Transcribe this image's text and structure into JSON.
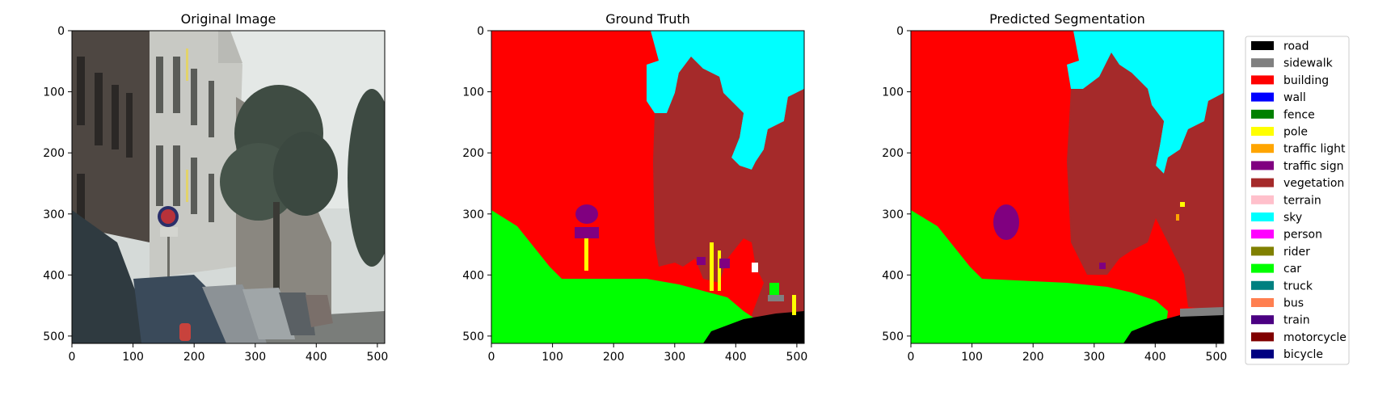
{
  "panels": [
    {
      "title": "Original Image",
      "kind": "photo",
      "xticks": [
        0,
        100,
        200,
        300,
        400,
        500
      ],
      "yticks": [
        0,
        100,
        200,
        300,
        400,
        500
      ],
      "xlim": [
        0,
        512
      ],
      "ylim": [
        512,
        0
      ]
    },
    {
      "title": "Ground Truth",
      "kind": "segmentation",
      "xticks": [
        0,
        100,
        200,
        300,
        400,
        500
      ],
      "yticks": [
        0,
        100,
        200,
        300,
        400,
        500
      ],
      "xlim": [
        0,
        512
      ],
      "ylim": [
        512,
        0
      ]
    },
    {
      "title": "Predicted Segmentation",
      "kind": "segmentation",
      "xticks": [
        0,
        100,
        200,
        300,
        400,
        500
      ],
      "yticks": [
        0,
        100,
        200,
        300,
        400,
        500
      ],
      "xlim": [
        0,
        512
      ],
      "ylim": [
        512,
        0
      ]
    }
  ],
  "legend": {
    "placement": "right",
    "items": [
      {
        "label": "road",
        "color": "#000000"
      },
      {
        "label": "sidewalk",
        "color": "#808080"
      },
      {
        "label": "building",
        "color": "#ff0000"
      },
      {
        "label": "wall",
        "color": "#0000ff"
      },
      {
        "label": "fence",
        "color": "#008000"
      },
      {
        "label": "pole",
        "color": "#ffff00"
      },
      {
        "label": "traffic light",
        "color": "#ffa500"
      },
      {
        "label": "traffic sign",
        "color": "#800080"
      },
      {
        "label": "vegetation",
        "color": "#a52a2a"
      },
      {
        "label": "terrain",
        "color": "#ffc0cb"
      },
      {
        "label": "sky",
        "color": "#00ffff"
      },
      {
        "label": "person",
        "color": "#ff00ff"
      },
      {
        "label": "rider",
        "color": "#808000"
      },
      {
        "label": "car",
        "color": "#00ff00"
      },
      {
        "label": "truck",
        "color": "#008080"
      },
      {
        "label": "bus",
        "color": "#ff7f50"
      },
      {
        "label": "train",
        "color": "#4b0082"
      },
      {
        "label": "motorcycle",
        "color": "#800000"
      },
      {
        "label": "bicycle",
        "color": "#000080"
      }
    ]
  },
  "chart_data": [
    {
      "type": "heatmap",
      "title": "Original Image",
      "xlim": [
        0,
        512
      ],
      "ylim": [
        512,
        0
      ],
      "xticks": [
        0,
        100,
        200,
        300,
        400,
        500
      ],
      "yticks": [
        0,
        100,
        200,
        300,
        400,
        500
      ],
      "grid": false
    },
    {
      "type": "heatmap",
      "title": "Ground Truth",
      "xlim": [
        0,
        512
      ],
      "ylim": [
        512,
        0
      ],
      "xticks": [
        0,
        100,
        200,
        300,
        400,
        500
      ],
      "yticks": [
        0,
        100,
        200,
        300,
        400,
        500
      ],
      "grid": false
    },
    {
      "type": "heatmap",
      "title": "Predicted Segmentation",
      "xlim": [
        0,
        512
      ],
      "ylim": [
        512,
        0
      ],
      "xticks": [
        0,
        100,
        200,
        300,
        400,
        500
      ],
      "yticks": [
        0,
        100,
        200,
        300,
        400,
        500
      ],
      "grid": false,
      "legend_placement": "right"
    }
  ]
}
